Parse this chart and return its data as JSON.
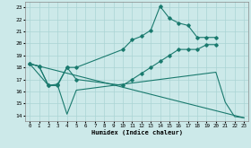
{
  "xlabel": "Humidex (Indice chaleur)",
  "bg_color": "#cce9e9",
  "grid_color": "#aad4d4",
  "line_color": "#1a7a6e",
  "xlim": [
    -0.5,
    23.5
  ],
  "ylim": [
    13.5,
    23.5
  ],
  "yticks": [
    14,
    15,
    16,
    17,
    18,
    19,
    20,
    21,
    22,
    23
  ],
  "xticks": [
    0,
    1,
    2,
    3,
    4,
    5,
    6,
    7,
    8,
    9,
    10,
    11,
    12,
    13,
    14,
    15,
    16,
    17,
    18,
    19,
    20,
    21,
    22,
    23
  ],
  "line1_x": [
    0,
    1,
    2,
    3,
    4,
    5,
    10,
    11,
    12,
    13,
    14,
    15,
    16,
    17,
    18,
    19,
    20
  ],
  "line1_y": [
    18.3,
    18.1,
    16.5,
    16.5,
    18.0,
    18.0,
    19.5,
    20.3,
    20.6,
    21.1,
    23.1,
    22.1,
    21.7,
    21.5,
    20.5,
    20.5,
    20.5
  ],
  "line2_x": [
    0,
    1,
    2,
    3,
    4,
    5,
    10,
    11,
    12,
    13,
    14,
    15,
    16,
    17,
    18,
    19,
    20
  ],
  "line2_y": [
    18.3,
    18.1,
    16.5,
    16.6,
    18.0,
    17.0,
    16.5,
    17.0,
    17.5,
    18.0,
    18.5,
    19.0,
    19.5,
    19.5,
    19.5,
    19.9,
    19.9
  ],
  "line3_x": [
    0,
    2,
    3,
    4,
    5,
    20,
    21,
    22,
    23
  ],
  "line3_y": [
    18.3,
    16.5,
    16.5,
    14.1,
    16.1,
    17.6,
    15.1,
    13.9,
    13.8
  ],
  "line4_x": [
    0,
    23
  ],
  "line4_y": [
    18.3,
    13.8
  ]
}
